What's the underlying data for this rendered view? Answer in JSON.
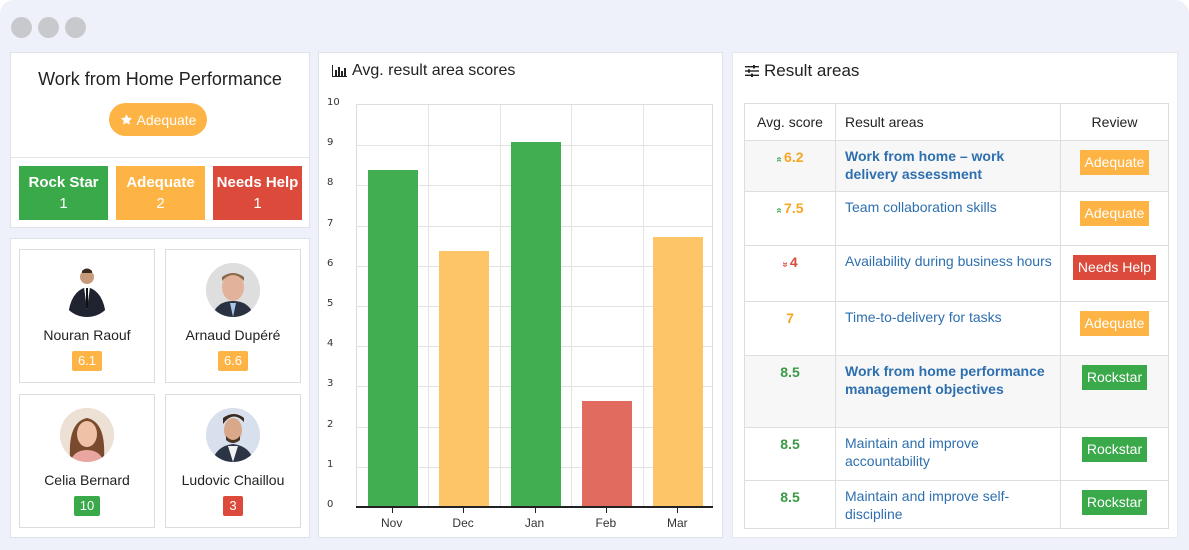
{
  "window": {
    "controls": [
      "dot-1",
      "dot-2",
      "dot-3"
    ]
  },
  "summary": {
    "title": "Work from Home Performance",
    "overall_rating": {
      "icon": "star-icon",
      "label": "Adequate"
    },
    "counters": [
      {
        "label": "Rock Star",
        "count": "1",
        "color": "#3aa94a"
      },
      {
        "label": "Adequate",
        "count": "2",
        "color": "#fdb444"
      },
      {
        "label": "Needs Help",
        "count": "1",
        "color": "#db4a3a"
      }
    ]
  },
  "people": [
    {
      "name": "Nouran Raouf",
      "score": "6.1",
      "color": "#fdb444"
    },
    {
      "name": "Arnaud Dupéré",
      "score": "6.6",
      "color": "#fdb444"
    },
    {
      "name": "Celia Bernard",
      "score": "10",
      "color": "#3aa94a"
    },
    {
      "name": "Ludovic Chaillou",
      "score": "3",
      "color": "#db4a3a"
    }
  ],
  "chart_panel": {
    "icon": "bar-chart-icon",
    "title": "Avg. result area scores"
  },
  "chart_data": {
    "type": "bar",
    "title": "Avg. result area scores",
    "categories": [
      "Nov",
      "Dec",
      "Jan",
      "Feb",
      "Mar"
    ],
    "values": [
      8.35,
      6.35,
      9.05,
      2.6,
      6.7
    ],
    "colors": [
      "#41ae51",
      "#fdc468",
      "#41ae51",
      "#e06b5e",
      "#fdc468"
    ],
    "xlabel": "",
    "ylabel": "",
    "ylim": [
      0,
      10
    ],
    "yticks": [
      "0",
      "1",
      "2",
      "3",
      "4",
      "5",
      "6",
      "7",
      "8",
      "9",
      "10"
    ],
    "grid": true,
    "legend": "none"
  },
  "areas_panel": {
    "icon": "sliders-icon",
    "title": "Result areas",
    "columns": [
      "Avg. score",
      "Result areas",
      "Review"
    ],
    "rows": [
      {
        "trend": "up",
        "score": "6.2",
        "score_color": "#f5a623",
        "area": "Work from home – work delivery assessment",
        "bold": true,
        "review": "Adequate",
        "review_color": "#fdb444"
      },
      {
        "trend": "up",
        "score": "7.5",
        "score_color": "#f5a623",
        "area": "Team collaboration skills",
        "bold": false,
        "review": "Adequate",
        "review_color": "#fdb444"
      },
      {
        "trend": "down",
        "score": "4",
        "score_color": "#db4a3a",
        "area": "Availability during business hours",
        "bold": false,
        "review": "Needs Help",
        "review_color": "#db4a3a"
      },
      {
        "trend": "",
        "score": "7",
        "score_color": "#f5a623",
        "area": "Time-to-delivery for tasks",
        "bold": false,
        "review": "Adequate",
        "review_color": "#fdb444"
      },
      {
        "trend": "",
        "score": "8.5",
        "score_color": "#3a9a44",
        "area": "Work from home performance management objectives",
        "bold": true,
        "review": "Rockstar",
        "review_color": "#3aa94a"
      },
      {
        "trend": "",
        "score": "8.5",
        "score_color": "#3a9a44",
        "area": "Maintain and improve accountability",
        "bold": false,
        "review": "Rockstar",
        "review_color": "#3aa94a"
      },
      {
        "trend": "",
        "score": "8.5",
        "score_color": "#3a9a44",
        "area": "Maintain and improve self-discipline",
        "bold": false,
        "review": "Rockstar",
        "review_color": "#3aa94a"
      }
    ]
  }
}
